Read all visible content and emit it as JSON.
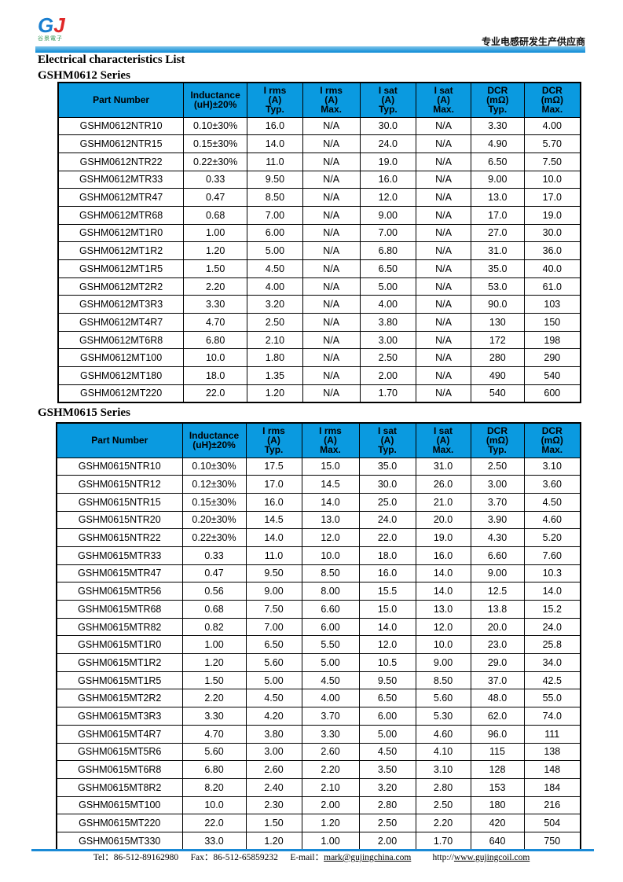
{
  "header": {
    "logo_mark": "GJ",
    "logo_text": "谷景電子",
    "tagline": "专业电感研发生产供应商"
  },
  "title": "Electrical characteristics List",
  "headers": [
    "Part Number",
    "Inductance (uH)±20%",
    "I rms (A) Typ.",
    "I rms (A) Max.",
    "I sat (A) Typ.",
    "I sat (A) Max.",
    "DCR (mΩ) Typ.",
    "DCR (mΩ) Max."
  ],
  "tables": [
    {
      "series": "GSHM0612 Series",
      "rows": [
        [
          "GSHM0612NTR10",
          "0.10±30%",
          "16.0",
          "N/A",
          "30.0",
          "N/A",
          "3.30",
          "4.00"
        ],
        [
          "GSHM0612NTR15",
          "0.15±30%",
          "14.0",
          "N/A",
          "24.0",
          "N/A",
          "4.90",
          "5.70"
        ],
        [
          "GSHM0612NTR22",
          "0.22±30%",
          "11.0",
          "N/A",
          "19.0",
          "N/A",
          "6.50",
          "7.50"
        ],
        [
          "GSHM0612MTR33",
          "0.33",
          "9.50",
          "N/A",
          "16.0",
          "N/A",
          "9.00",
          "10.0"
        ],
        [
          "GSHM0612MTR47",
          "0.47",
          "8.50",
          "N/A",
          "12.0",
          "N/A",
          "13.0",
          "17.0"
        ],
        [
          "GSHM0612MTR68",
          "0.68",
          "7.00",
          "N/A",
          "9.00",
          "N/A",
          "17.0",
          "19.0"
        ],
        [
          "GSHM0612MT1R0",
          "1.00",
          "6.00",
          "N/A",
          "7.00",
          "N/A",
          "27.0",
          "30.0"
        ],
        [
          "GSHM0612MT1R2",
          "1.20",
          "5.00",
          "N/A",
          "6.80",
          "N/A",
          "31.0",
          "36.0"
        ],
        [
          "GSHM0612MT1R5",
          "1.50",
          "4.50",
          "N/A",
          "6.50",
          "N/A",
          "35.0",
          "40.0"
        ],
        [
          "GSHM0612MT2R2",
          "2.20",
          "4.00",
          "N/A",
          "5.00",
          "N/A",
          "53.0",
          "61.0"
        ],
        [
          "GSHM0612MT3R3",
          "3.30",
          "3.20",
          "N/A",
          "4.00",
          "N/A",
          "90.0",
          "103"
        ],
        [
          "GSHM0612MT4R7",
          "4.70",
          "2.50",
          "N/A",
          "3.80",
          "N/A",
          "130",
          "150"
        ],
        [
          "GSHM0612MT6R8",
          "6.80",
          "2.10",
          "N/A",
          "3.00",
          "N/A",
          "172",
          "198"
        ],
        [
          "GSHM0612MT100",
          "10.0",
          "1.80",
          "N/A",
          "2.50",
          "N/A",
          "280",
          "290"
        ],
        [
          "GSHM0612MT180",
          "18.0",
          "1.35",
          "N/A",
          "2.00",
          "N/A",
          "490",
          "540"
        ],
        [
          "GSHM0612MT220",
          "22.0",
          "1.20",
          "N/A",
          "1.70",
          "N/A",
          "540",
          "600"
        ]
      ]
    },
    {
      "series": "GSHM0615 Series",
      "rows": [
        [
          "GSHM0615NTR10",
          "0.10±30%",
          "17.5",
          "15.0",
          "35.0",
          "31.0",
          "2.50",
          "3.10"
        ],
        [
          "GSHM0615NTR12",
          "0.12±30%",
          "17.0",
          "14.5",
          "30.0",
          "26.0",
          "3.00",
          "3.60"
        ],
        [
          "GSHM0615NTR15",
          "0.15±30%",
          "16.0",
          "14.0",
          "25.0",
          "21.0",
          "3.70",
          "4.50"
        ],
        [
          "GSHM0615NTR20",
          "0.20±30%",
          "14.5",
          "13.0",
          "24.0",
          "20.0",
          "3.90",
          "4.60"
        ],
        [
          "GSHM0615NTR22",
          "0.22±30%",
          "14.0",
          "12.0",
          "22.0",
          "19.0",
          "4.30",
          "5.20"
        ],
        [
          "GSHM0615MTR33",
          "0.33",
          "11.0",
          "10.0",
          "18.0",
          "16.0",
          "6.60",
          "7.60"
        ],
        [
          "GSHM0615MTR47",
          "0.47",
          "9.50",
          "8.50",
          "16.0",
          "14.0",
          "9.00",
          "10.3"
        ],
        [
          "GSHM0615MTR56",
          "0.56",
          "9.00",
          "8.00",
          "15.5",
          "14.0",
          "12.5",
          "14.0"
        ],
        [
          "GSHM0615MTR68",
          "0.68",
          "7.50",
          "6.60",
          "15.0",
          "13.0",
          "13.8",
          "15.2"
        ],
        [
          "GSHM0615MTR82",
          "0.82",
          "7.00",
          "6.00",
          "14.0",
          "12.0",
          "20.0",
          "24.0"
        ],
        [
          "GSHM0615MT1R0",
          "1.00",
          "6.50",
          "5.50",
          "12.0",
          "10.0",
          "23.0",
          "25.8"
        ],
        [
          "GSHM0615MT1R2",
          "1.20",
          "5.60",
          "5.00",
          "10.5",
          "9.00",
          "29.0",
          "34.0"
        ],
        [
          "GSHM0615MT1R5",
          "1.50",
          "5.00",
          "4.50",
          "9.50",
          "8.50",
          "37.0",
          "42.5"
        ],
        [
          "GSHM0615MT2R2",
          "2.20",
          "4.50",
          "4.00",
          "6.50",
          "5.60",
          "48.0",
          "55.0"
        ],
        [
          "GSHM0615MT3R3",
          "3.30",
          "4.20",
          "3.70",
          "6.00",
          "5.30",
          "62.0",
          "74.0"
        ],
        [
          "GSHM0615MT4R7",
          "4.70",
          "3.80",
          "3.30",
          "5.00",
          "4.60",
          "96.0",
          "111"
        ],
        [
          "GSHM0615MT5R6",
          "5.60",
          "3.00",
          "2.60",
          "4.50",
          "4.10",
          "115",
          "138"
        ],
        [
          "GSHM0615MT6R8",
          "6.80",
          "2.60",
          "2.20",
          "3.50",
          "3.10",
          "128",
          "148"
        ],
        [
          "GSHM0615MT8R2",
          "8.20",
          "2.40",
          "2.10",
          "3.20",
          "2.80",
          "153",
          "184"
        ],
        [
          "GSHM0615MT100",
          "10.0",
          "2.30",
          "2.00",
          "2.80",
          "2.50",
          "180",
          "216"
        ],
        [
          "GSHM0615MT220",
          "22.0",
          "1.50",
          "1.20",
          "2.50",
          "2.20",
          "420",
          "504"
        ],
        [
          "GSHM0615MT330",
          "33.0",
          "1.20",
          "1.00",
          "2.00",
          "1.70",
          "640",
          "750"
        ]
      ]
    }
  ],
  "footer": {
    "tel": "Tel：86-512-89162980",
    "fax": "Fax：86-512-65859232",
    "email_label": "E-mail：",
    "email": "mark@gujingchina.com",
    "web_label": "http://",
    "web": "www.gujingcoil.com"
  }
}
